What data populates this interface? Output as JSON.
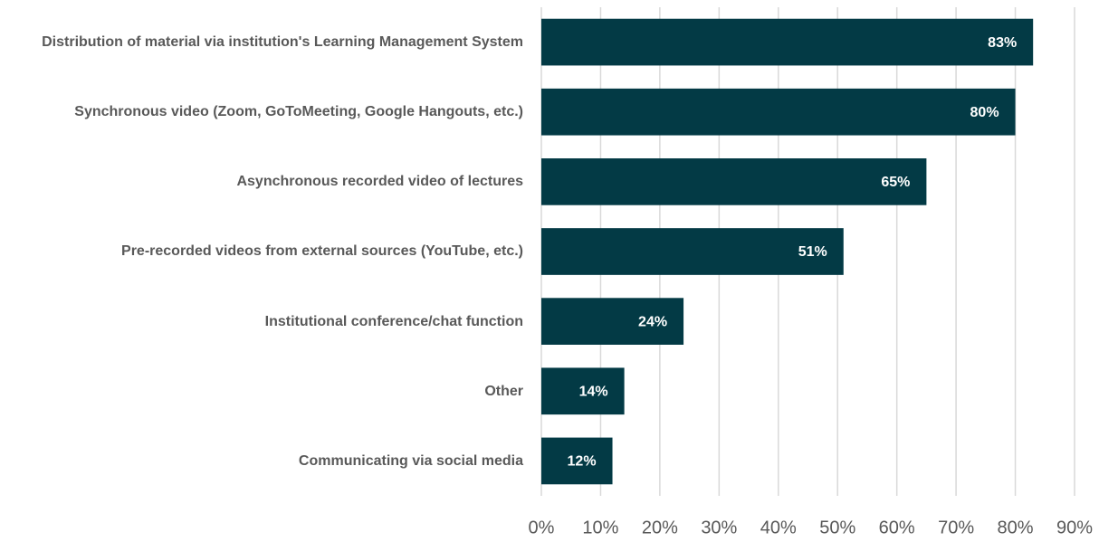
{
  "chart_data": {
    "type": "bar",
    "orientation": "horizontal",
    "categories": [
      "Distribution of material via institution's Learning Management System",
      "Synchronous video (Zoom, GoToMeeting, Google Hangouts, etc.)",
      "Asynchronous recorded video of lectures",
      "Pre-recorded videos from external sources (YouTube, etc.)",
      "Institutional conference/chat function",
      "Other",
      "Communicating via social media"
    ],
    "values": [
      83,
      80,
      65,
      51,
      24,
      14,
      12
    ],
    "value_labels": [
      "83%",
      "80%",
      "65%",
      "51%",
      "24%",
      "14%",
      "12%"
    ],
    "color": "#033a45",
    "xlim": [
      0,
      90
    ],
    "xticks": [
      {
        "value": 0,
        "label": "0%"
      },
      {
        "value": 10,
        "label": "10%"
      },
      {
        "value": 20,
        "label": "20%"
      },
      {
        "value": 30,
        "label": "30%"
      },
      {
        "value": 40,
        "label": "40%"
      },
      {
        "value": 50,
        "label": "50%"
      },
      {
        "value": 60,
        "label": "60%"
      },
      {
        "value": 70,
        "label": "70%"
      },
      {
        "value": 80,
        "label": "80%"
      },
      {
        "value": 90,
        "label": "90%"
      }
    ],
    "grid": true
  }
}
